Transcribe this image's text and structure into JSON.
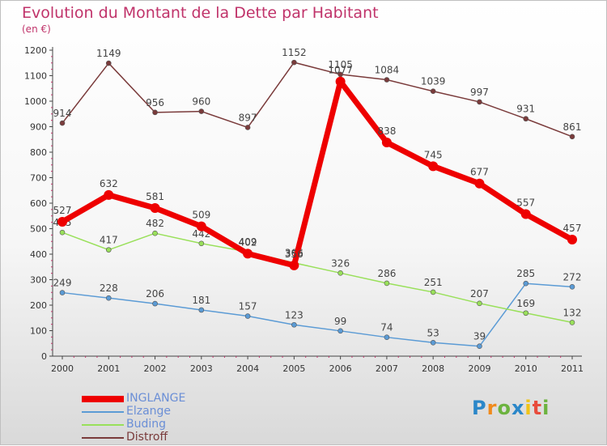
{
  "chart_data": {
    "type": "line",
    "title": "Evolution du Montant de la Dette par Habitant",
    "subtitle": "(en €)",
    "x": [
      "2000",
      "2001",
      "2002",
      "2003",
      "2004",
      "2005",
      "2006",
      "2007",
      "2008",
      "2009",
      "2010",
      "2011"
    ],
    "ylim": [
      0,
      1200
    ],
    "yticks": [
      0,
      100,
      200,
      300,
      400,
      500,
      600,
      700,
      800,
      900,
      1000,
      1100,
      1200
    ],
    "grid": false,
    "legend_position": "bottom-left",
    "series": [
      {
        "name": "INGLANGE",
        "color": "#ee0000",
        "width": 7,
        "values": [
          527,
          632,
          581,
          509,
          402,
          356,
          1077,
          838,
          745,
          677,
          557,
          457
        ]
      },
      {
        "name": "Elzange",
        "color": "#5b9bd5",
        "width": 1.5,
        "values": [
          249,
          228,
          206,
          181,
          157,
          123,
          99,
          74,
          53,
          39,
          285,
          272
        ]
      },
      {
        "name": "Buding",
        "color": "#99e05a",
        "width": 1.5,
        "values": [
          485,
          417,
          482,
          442,
          409,
          366,
          326,
          286,
          251,
          207,
          169,
          132
        ]
      },
      {
        "name": "Distroff",
        "color": "#7a3b3b",
        "width": 1.5,
        "values": [
          914,
          1149,
          956,
          960,
          897,
          1152,
          1105,
          1084,
          1039,
          997,
          931,
          861
        ]
      }
    ]
  },
  "logo": {
    "letters": [
      "P",
      "r",
      "o",
      "x",
      "i",
      "t",
      "i"
    ],
    "colors": [
      "#2b87c9",
      "#f08a1c",
      "#6cb33f",
      "#2b87c9",
      "#f0c419",
      "#e84c3d",
      "#6cb33f"
    ]
  }
}
